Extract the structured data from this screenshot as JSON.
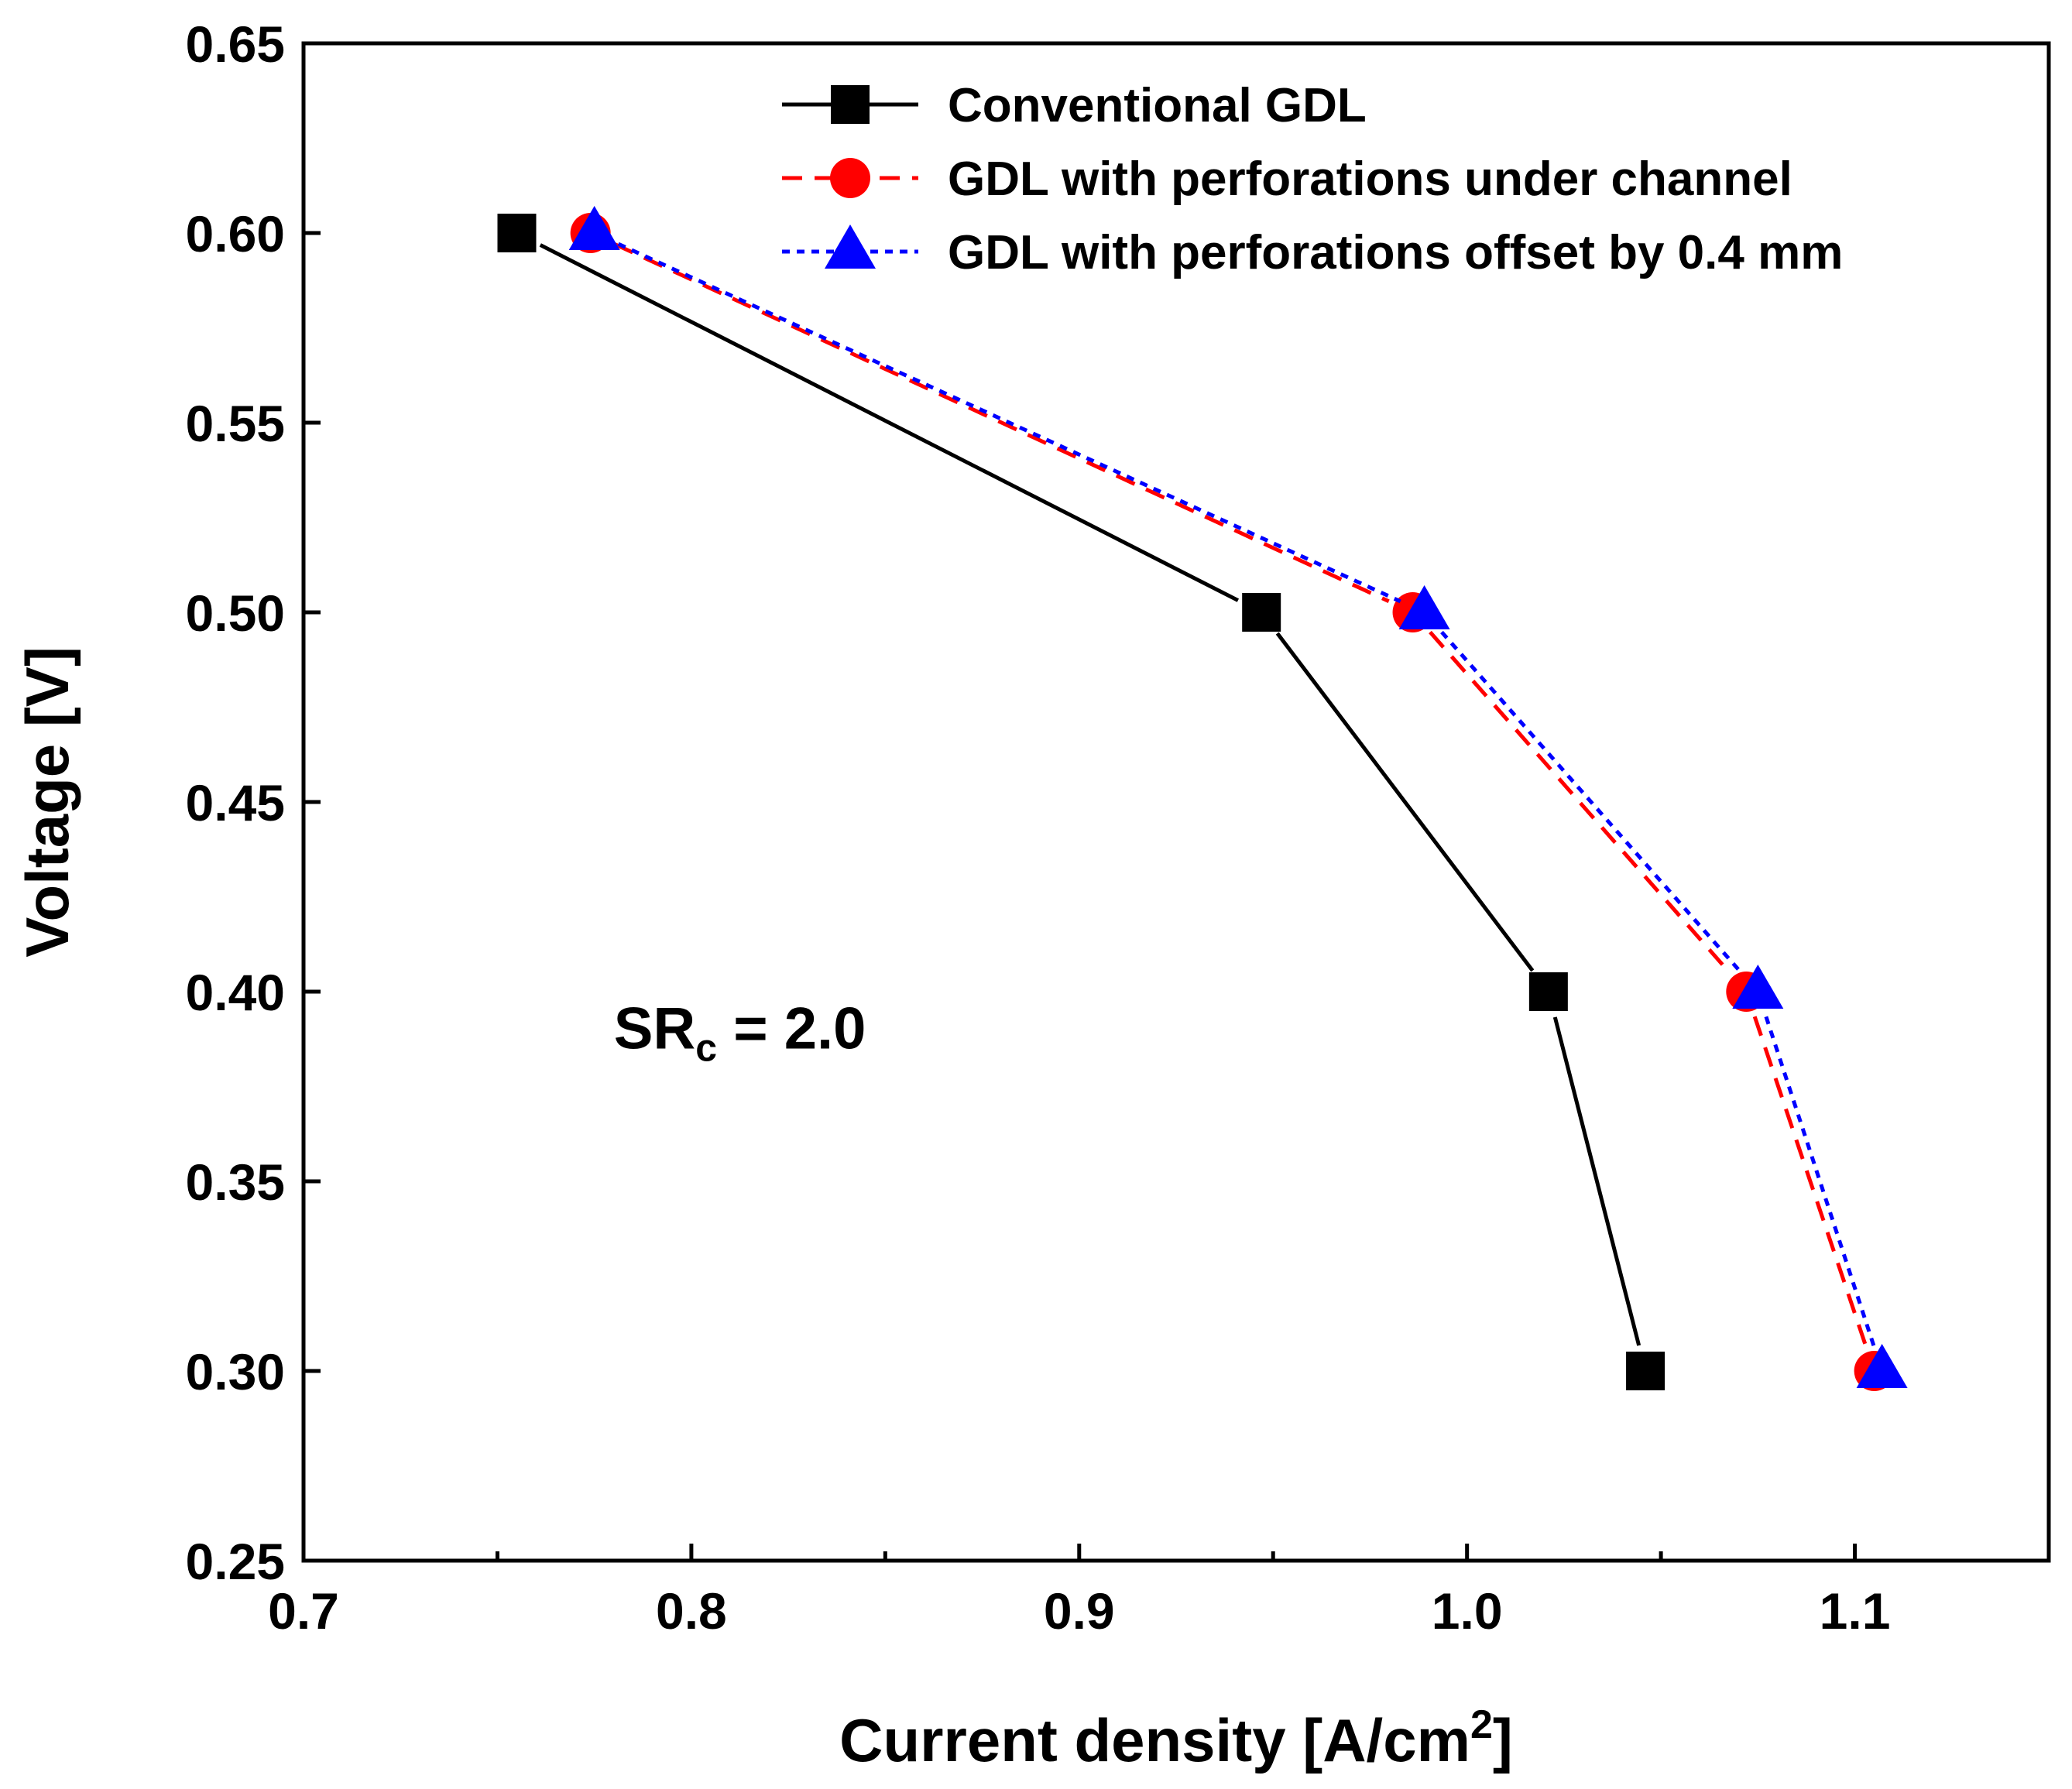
{
  "chart_data": {
    "type": "line",
    "title": "",
    "xlabel": "Current density [A/cm",
    "xlabel_sup": "2",
    "xlabel_end": "]",
    "ylabel": "Voltage [V]",
    "xlim": [
      0.7,
      1.15
    ],
    "ylim": [
      0.25,
      0.65
    ],
    "x_ticks": [
      0.7,
      0.8,
      0.9,
      1.0,
      1.1
    ],
    "x_tick_labels": [
      "0.7",
      "0.8",
      "0.9",
      "1.0",
      "1.1"
    ],
    "x_minor_ticks": [
      0.75,
      0.85,
      0.95,
      1.05
    ],
    "y_ticks": [
      0.25,
      0.3,
      0.35,
      0.4,
      0.45,
      0.5,
      0.55,
      0.6,
      0.65
    ],
    "y_tick_labels": [
      "0.25",
      "0.30",
      "0.35",
      "0.40",
      "0.45",
      "0.50",
      "0.55",
      "0.60",
      "0.65"
    ],
    "grid": false,
    "legend_position": "top-right",
    "annotation": {
      "main": "SR",
      "sub": "c",
      "rest": " = 2.0",
      "x": 0.78,
      "y": 0.385
    },
    "series": [
      {
        "name": "Conventional GDL",
        "color": "#000000",
        "line_style": "solid",
        "marker": "square",
        "points": [
          {
            "x": 0.755,
            "y": 0.6
          },
          {
            "x": 0.947,
            "y": 0.5
          },
          {
            "x": 1.021,
            "y": 0.4
          },
          {
            "x": 1.046,
            "y": 0.3
          }
        ]
      },
      {
        "name": "GDL with perforations under channel",
        "color": "#ff0000",
        "line_style": "dashed",
        "marker": "circle",
        "points": [
          {
            "x": 0.774,
            "y": 0.6
          },
          {
            "x": 0.986,
            "y": 0.5
          },
          {
            "x": 1.072,
            "y": 0.4
          },
          {
            "x": 1.105,
            "y": 0.3
          }
        ]
      },
      {
        "name": "GDL with perforations offset by 0.4 mm",
        "color": "#0000ff",
        "line_style": "dotted",
        "marker": "triangle",
        "points": [
          {
            "x": 0.775,
            "y": 0.6
          },
          {
            "x": 0.989,
            "y": 0.5
          },
          {
            "x": 1.075,
            "y": 0.4
          },
          {
            "x": 1.107,
            "y": 0.3
          }
        ]
      }
    ]
  }
}
